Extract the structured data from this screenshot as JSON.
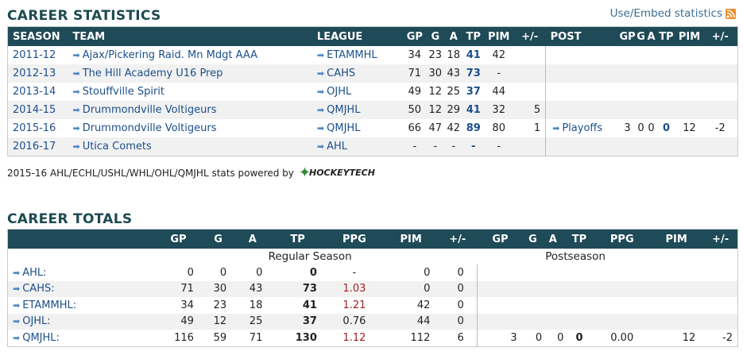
{
  "career_stats": {
    "title": "CAREER STATISTICS",
    "embed_label": "Use/Embed statistics",
    "headers": [
      "SEASON",
      "TEAM",
      "LEAGUE",
      "GP",
      "G",
      "A",
      "TP",
      "PIM",
      "+/-",
      "POST",
      "GP",
      "G",
      "A",
      "TP",
      "PIM",
      "+/-"
    ],
    "rows": [
      {
        "season": "2011-12",
        "team": "Ajax/Pickering Raid. Mn Mdgt AAA",
        "league": "ETAMMHL",
        "gp": "34",
        "g": "23",
        "a": "18",
        "tp": "41",
        "pim": "42",
        "pm": "",
        "post": "",
        "pgp": "",
        "pg": "",
        "pa": "",
        "ptp": "",
        "ppim": "",
        "ppm": ""
      },
      {
        "season": "2012-13",
        "team": "The Hill Academy U16 Prep",
        "league": "CAHS",
        "gp": "71",
        "g": "30",
        "a": "43",
        "tp": "73",
        "pim": "-",
        "pm": "",
        "post": "",
        "pgp": "",
        "pg": "",
        "pa": "",
        "ptp": "",
        "ppim": "",
        "ppm": ""
      },
      {
        "season": "2013-14",
        "team": "Stouffville Spirit",
        "league": "OJHL",
        "gp": "49",
        "g": "12",
        "a": "25",
        "tp": "37",
        "pim": "44",
        "pm": "",
        "post": "",
        "pgp": "",
        "pg": "",
        "pa": "",
        "ptp": "",
        "ppim": "",
        "ppm": ""
      },
      {
        "season": "2014-15",
        "team": "Drummondville Voltigeurs",
        "league": "QMJHL",
        "gp": "50",
        "g": "12",
        "a": "29",
        "tp": "41",
        "pim": "32",
        "pm": "5",
        "post": "",
        "pgp": "",
        "pg": "",
        "pa": "",
        "ptp": "",
        "ppim": "",
        "ppm": ""
      },
      {
        "season": "2015-16",
        "team": "Drummondville Voltigeurs",
        "league": "QMJHL",
        "gp": "66",
        "g": "47",
        "a": "42",
        "tp": "89",
        "pim": "80",
        "pm": "1",
        "post": "Playoffs",
        "pgp": "3",
        "pg": "0",
        "pa": "0",
        "ptp": "0",
        "ppim": "12",
        "ppm": "-2"
      },
      {
        "season": "2016-17",
        "team": "Utica Comets",
        "league": "AHL",
        "gp": "-",
        "g": "-",
        "a": "-",
        "tp": "-",
        "pim": "-",
        "pm": "",
        "post": "",
        "pgp": "",
        "pg": "",
        "pa": "",
        "ptp": "",
        "ppim": "",
        "ppm": ""
      }
    ],
    "powered_prefix": "2015-16 AHL/ECHL/USHL/WHL/OHL/QMJHL stats powered by",
    "powered_logo": "HOCKEYTECH"
  },
  "career_totals": {
    "title": "CAREER TOTALS",
    "headers": [
      "GP",
      "G",
      "A",
      "TP",
      "PPG",
      "PIM",
      "+/-",
      "GP",
      "G",
      "A",
      "TP",
      "PPG",
      "PIM",
      "+/-"
    ],
    "regular_label": "Regular Season",
    "post_label": "Postseason",
    "rows": [
      {
        "league": "AHL:",
        "gp": "0",
        "g": "0",
        "a": "0",
        "tp": "0",
        "ppg": "-",
        "pim": "0",
        "pm": "0",
        "pgp": "",
        "pg": "",
        "pa": "",
        "ptp": "",
        "pppg": "",
        "ppim": "",
        "ppm": ""
      },
      {
        "league": "CAHS:",
        "gp": "71",
        "g": "30",
        "a": "43",
        "tp": "73",
        "ppg": "1.03",
        "pim": "0",
        "pm": "0",
        "pgp": "",
        "pg": "",
        "pa": "",
        "ptp": "",
        "pppg": "",
        "ppim": "",
        "ppm": ""
      },
      {
        "league": "ETAMMHL:",
        "gp": "34",
        "g": "23",
        "a": "18",
        "tp": "41",
        "ppg": "1.21",
        "pim": "42",
        "pm": "0",
        "pgp": "",
        "pg": "",
        "pa": "",
        "ptp": "",
        "pppg": "",
        "ppim": "",
        "ppm": ""
      },
      {
        "league": "OJHL:",
        "gp": "49",
        "g": "12",
        "a": "25",
        "tp": "37",
        "ppg": "0.76",
        "pim": "44",
        "pm": "0",
        "pgp": "",
        "pg": "",
        "pa": "",
        "ptp": "",
        "pppg": "",
        "ppim": "",
        "ppm": ""
      },
      {
        "league": "QMJHL:",
        "gp": "116",
        "g": "59",
        "a": "71",
        "tp": "130",
        "ppg": "1.12",
        "pim": "112",
        "pm": "6",
        "pgp": "3",
        "pg": "0",
        "pa": "0",
        "ptp": "0",
        "pppg": "0.00",
        "ppim": "12",
        "ppm": "-2"
      }
    ]
  },
  "colors": {
    "header_bg": "#1f4a57",
    "title": "#1d4a52",
    "link": "#1c4f8a",
    "ppg_red": "#9e1f1f"
  }
}
